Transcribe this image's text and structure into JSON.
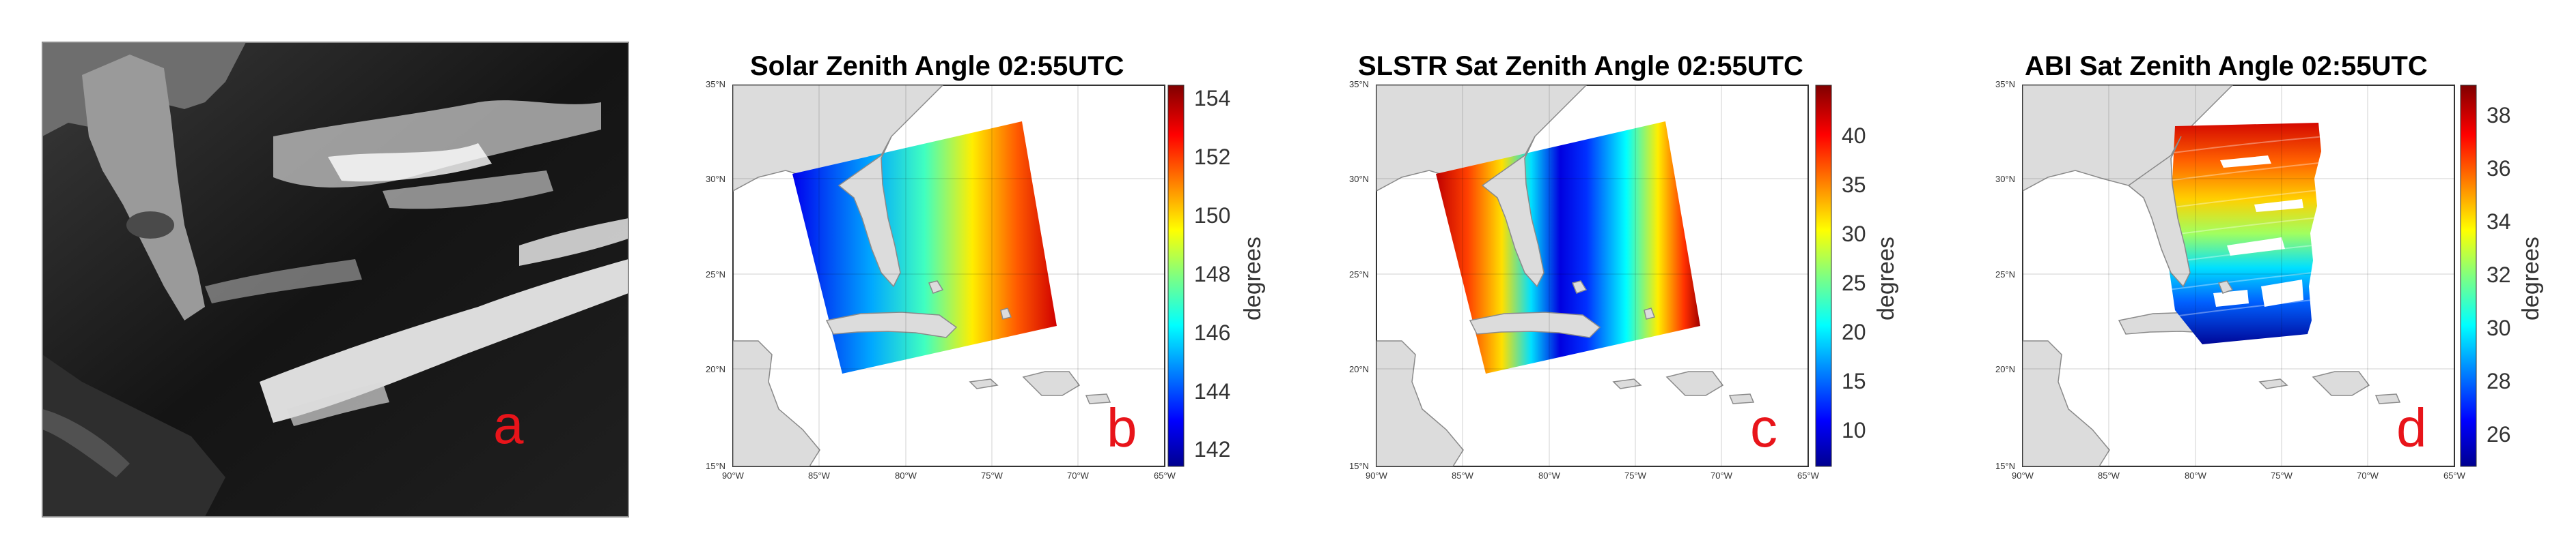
{
  "figure": {
    "panel_a": {
      "letter": "a"
    },
    "panels": [
      {
        "id": "b",
        "title": "Solar Zenith Angle 02:55UTC",
        "letter": "b",
        "unit": "degrees",
        "colormap": "jet",
        "cbar_ticks": [
          "154",
          "152",
          "150",
          "148",
          "146",
          "144",
          "142"
        ],
        "lat_ticks": [
          "35°N",
          "30°N",
          "25°N",
          "20°N",
          "15°N"
        ],
        "lon_ticks": [
          "90°W",
          "85°W",
          "80°W",
          "75°W",
          "70°W",
          "65°W"
        ]
      },
      {
        "id": "c",
        "title": "SLSTR Sat Zenith Angle 02:55UTC",
        "letter": "c",
        "unit": "degrees",
        "colormap": "jet",
        "cbar_ticks": [
          "40",
          "35",
          "30",
          "25",
          "20",
          "15",
          "10"
        ],
        "lat_ticks": [
          "35°N",
          "30°N",
          "25°N",
          "20°N",
          "15°N"
        ],
        "lon_ticks": [
          "90°W",
          "85°W",
          "80°W",
          "75°W",
          "70°W",
          "65°W"
        ]
      },
      {
        "id": "d",
        "title": "ABI Sat Zenith Angle 02:55UTC",
        "letter": "d",
        "unit": "degrees",
        "colormap": "jet",
        "cbar_ticks": [
          "38",
          "36",
          "34",
          "32",
          "30",
          "28",
          "26"
        ],
        "lat_ticks": [
          "35°N",
          "30°N",
          "25°N",
          "20°N",
          "15°N"
        ],
        "lon_ticks": [
          "90°W",
          "85°W",
          "80°W",
          "75°W",
          "70°W",
          "65°W"
        ]
      }
    ]
  }
}
